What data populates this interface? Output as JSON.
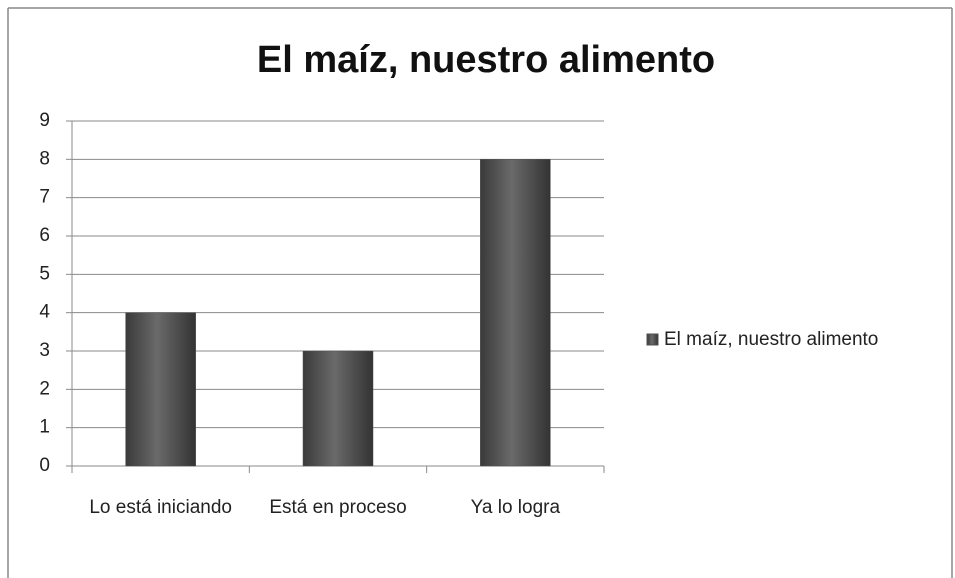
{
  "chart_data": {
    "type": "bar",
    "title": "El maíz, nuestro alimento",
    "categories": [
      "Lo está iniciando",
      "Está en proceso",
      "Ya lo logra"
    ],
    "series": [
      {
        "name": "El maíz, nuestro alimento",
        "color": "#4f4f4f",
        "values": [
          4,
          3,
          8
        ]
      }
    ],
    "ylim": [
      0,
      9
    ],
    "yticks": [
      0,
      1,
      2,
      3,
      4,
      5,
      6,
      7,
      8,
      9
    ],
    "grid": true,
    "legend": "right"
  }
}
